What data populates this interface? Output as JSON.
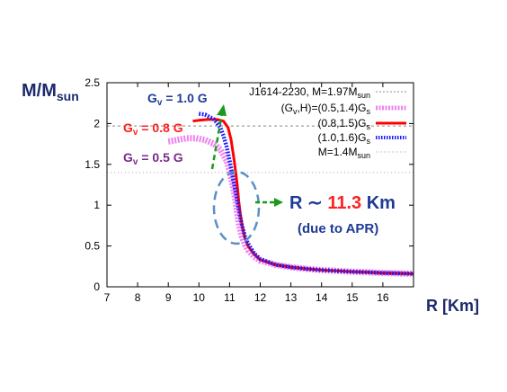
{
  "chart_data": {
    "type": "line",
    "ylabel": {
      "main": "M/M",
      "sub": "sun"
    },
    "xlabel": "R [Km]",
    "xlim": [
      7,
      17
    ],
    "ylim": [
      0,
      2.5
    ],
    "xticks": [
      "7",
      "8",
      "9",
      "10",
      "11",
      "12",
      "13",
      "14",
      "15",
      "16"
    ],
    "yticks": [
      "0",
      "0.5",
      "1",
      "1.5",
      "2",
      "2.5"
    ],
    "legend_position": "top-right",
    "reference_lines": [
      {
        "label": "J1614-2230, M=1.97M",
        "label_sub": "sun",
        "y": 1.97,
        "color": "#888888"
      },
      {
        "label": "M=1.4M",
        "label_sub": "sun",
        "y": 1.4,
        "color": "#aaaaaa"
      }
    ],
    "series": [
      {
        "name": "(G",
        "name_sub": "v",
        "name_mid": ",H)=(0.5,1.4)G",
        "name_sub2": "s",
        "color": "#ee82ee",
        "style": "thick-dashed",
        "x": [
          9.0,
          9.3,
          9.6,
          9.9,
          10.2,
          10.5,
          10.7,
          10.9,
          11.0,
          11.1,
          11.2,
          11.25,
          11.3,
          11.4,
          11.5,
          11.6,
          11.8,
          12.0,
          12.5,
          13.0,
          13.5,
          14.0,
          14.5,
          15.0,
          15.5,
          16.0,
          16.5,
          17.0
        ],
        "y": [
          1.78,
          1.8,
          1.82,
          1.82,
          1.8,
          1.75,
          1.68,
          1.55,
          1.42,
          1.25,
          1.05,
          0.9,
          0.78,
          0.62,
          0.52,
          0.45,
          0.37,
          0.32,
          0.27,
          0.24,
          0.22,
          0.205,
          0.195,
          0.185,
          0.178,
          0.17,
          0.165,
          0.16
        ]
      },
      {
        "name": "(0.8,1.5)G",
        "name_sub": "s",
        "color": "#ff0000",
        "style": "solid",
        "x": [
          9.8,
          10.0,
          10.3,
          10.6,
          10.8,
          10.95,
          11.05,
          11.15,
          11.25,
          11.3,
          11.35,
          11.4,
          11.45,
          11.5,
          11.6,
          11.8,
          12.0,
          12.5,
          13.0,
          13.5,
          14.0,
          14.5,
          15.0,
          15.5,
          16.0,
          16.5,
          17.0
        ],
        "y": [
          2.03,
          2.04,
          2.05,
          2.05,
          2.03,
          1.95,
          1.8,
          1.55,
          1.25,
          1.05,
          0.9,
          0.78,
          0.68,
          0.6,
          0.5,
          0.4,
          0.33,
          0.27,
          0.24,
          0.22,
          0.205,
          0.195,
          0.185,
          0.178,
          0.17,
          0.165,
          0.16
        ]
      },
      {
        "name": "(1.0,1.6)G",
        "name_sub": "s",
        "color": "#1a1aff",
        "style": "dotted",
        "x": [
          10.0,
          10.2,
          10.5,
          10.7,
          10.8,
          10.9,
          11.0,
          11.1,
          11.2,
          11.3,
          11.35,
          11.4,
          11.5,
          11.6,
          11.8,
          12.0,
          12.5,
          13.0,
          13.5,
          14.0,
          14.5,
          15.0,
          15.5,
          16.0,
          16.5,
          17.0
        ],
        "y": [
          2.12,
          2.11,
          2.05,
          1.95,
          1.85,
          1.72,
          1.55,
          1.35,
          1.15,
          0.95,
          0.85,
          0.76,
          0.62,
          0.53,
          0.41,
          0.34,
          0.27,
          0.24,
          0.22,
          0.205,
          0.195,
          0.185,
          0.178,
          0.17,
          0.165,
          0.16
        ]
      }
    ],
    "annotations": {
      "gv_labels": [
        {
          "prefix": "G",
          "sub": "v",
          "text": " = 1.0 G",
          "color": "#1e3a96"
        },
        {
          "prefix": "G",
          "sub": "v",
          "text": " = 0.8 G",
          "color": "#ff2020"
        },
        {
          "prefix": "G",
          "sub": "v",
          "text": " = 0.5 G",
          "color": "#7a2a8a"
        }
      ],
      "radius": {
        "prefix": "R ∼ ",
        "value": "11.3",
        "unit": " Km",
        "note": "(due to APR)",
        "prefix_color": "#1e3a96",
        "value_color": "#ff2020"
      },
      "arrow_color": "#1a9a1a",
      "ellipse_color": "#5b8fc7"
    }
  }
}
